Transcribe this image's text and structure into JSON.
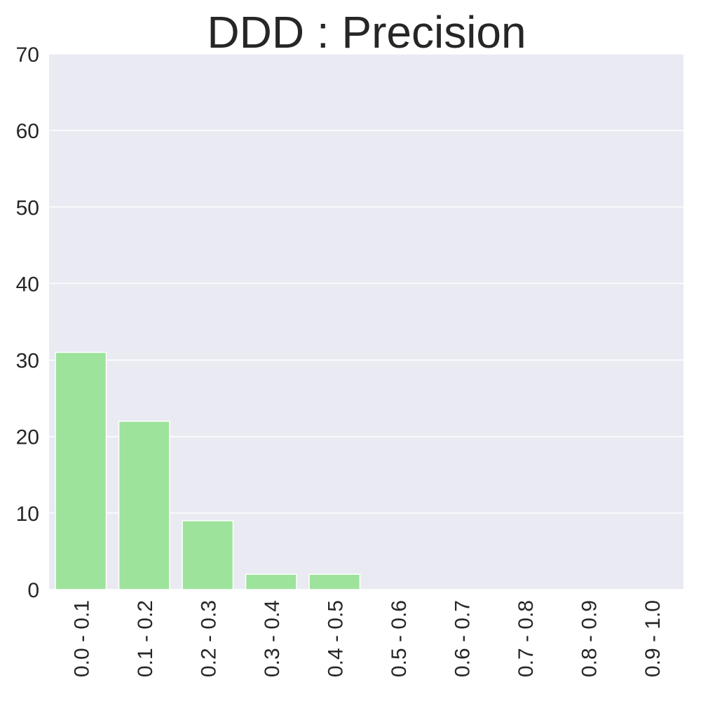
{
  "chart_data": {
    "type": "bar",
    "title": "DDD : Precision",
    "xlabel": "",
    "ylabel": "",
    "categories": [
      "0.0 - 0.1",
      "0.1 - 0.2",
      "0.2 - 0.3",
      "0.3 - 0.4",
      "0.4 - 0.5",
      "0.5 - 0.6",
      "0.6 - 0.7",
      "0.7 - 0.8",
      "0.8 - 0.9",
      "0.9 - 1.0"
    ],
    "values": [
      31,
      22,
      9,
      2,
      2,
      0,
      0,
      0,
      0,
      0
    ],
    "ylim": [
      0,
      70
    ],
    "yticks": [
      0,
      10,
      20,
      30,
      40,
      50,
      60,
      70
    ],
    "grid": true,
    "legend": "none",
    "colors": {
      "bar": "#9de39b",
      "plot_background": "#eaeaf2",
      "grid": "#ffffff",
      "text": "#262626"
    }
  }
}
